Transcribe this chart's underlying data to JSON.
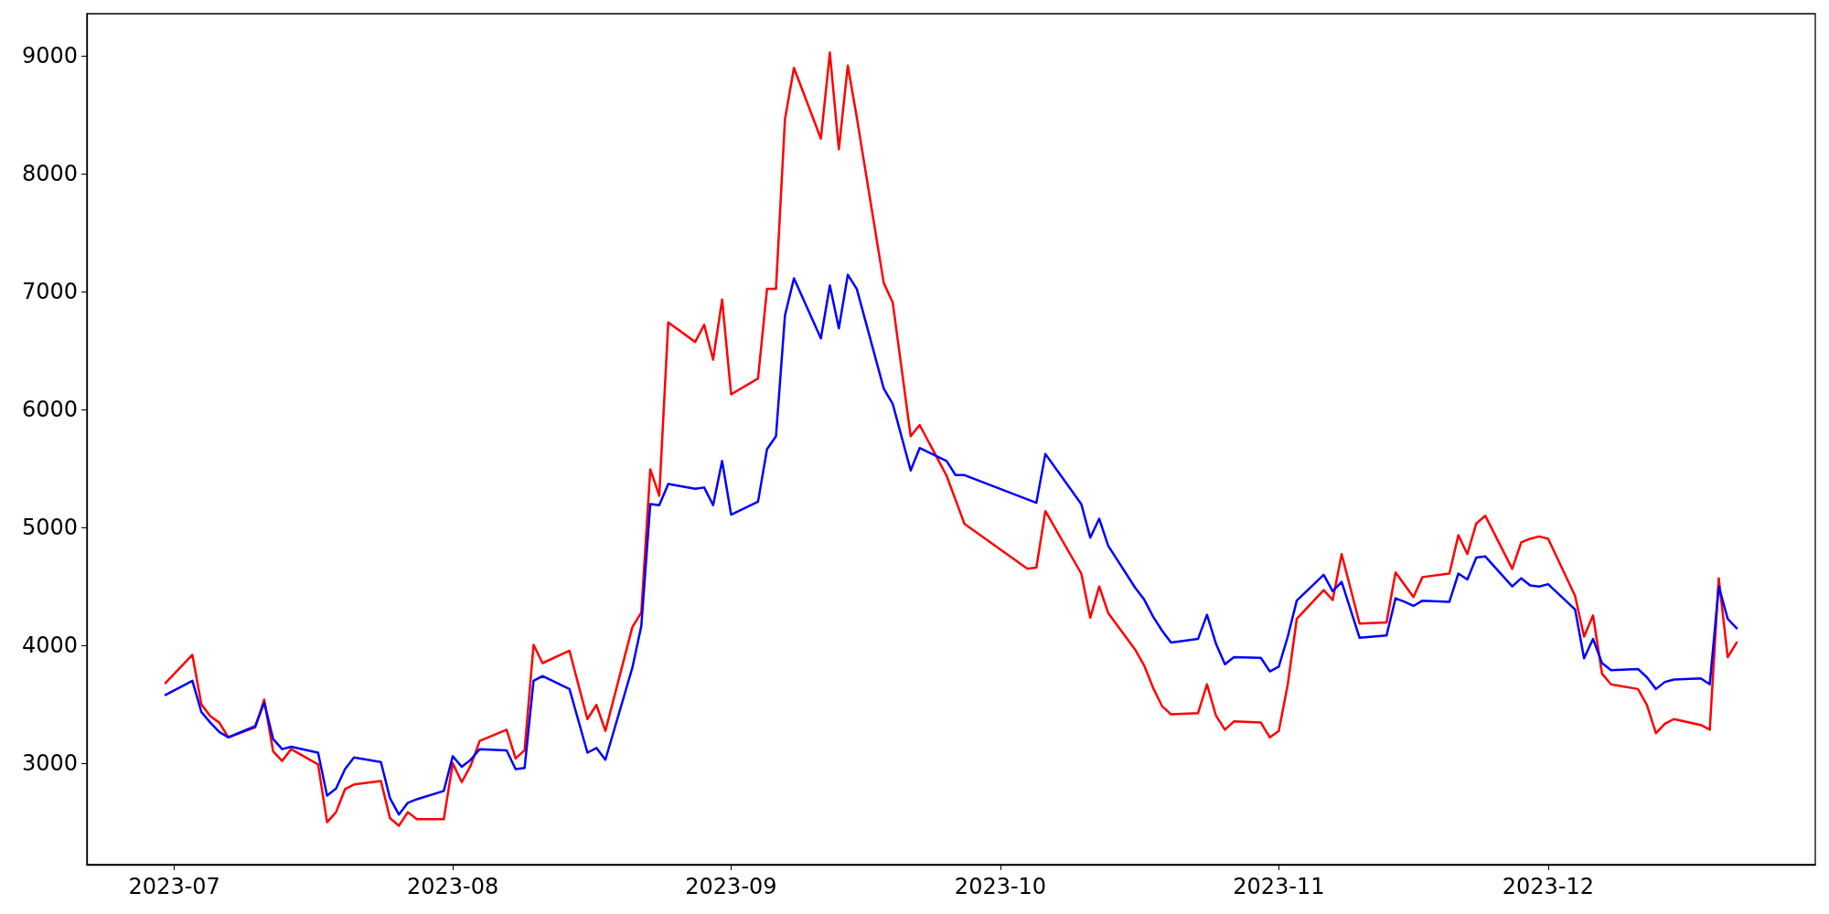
{
  "chart_data": {
    "type": "line",
    "xlim": [
      "2023-06-21T06:00",
      "2023-12-30T18:00"
    ],
    "ylim": [
      2140,
      9360
    ],
    "xticks": [
      "2023-07",
      "2023-08",
      "2023-09",
      "2023-10",
      "2023-11",
      "2023-12"
    ],
    "yticks": [
      3000,
      4000,
      5000,
      6000,
      7000,
      8000,
      9000
    ],
    "grid": false,
    "marker": "none",
    "line_style": "solid",
    "series": [
      {
        "color": "#ff0000",
        "x": [
          "2023-06-30",
          "2023-07-03",
          "2023-07-04",
          "2023-07-05",
          "2023-07-06",
          "2023-07-07",
          "2023-07-10",
          "2023-07-11",
          "2023-07-12",
          "2023-07-13",
          "2023-07-14",
          "2023-07-17",
          "2023-07-18",
          "2023-07-19",
          "2023-07-20",
          "2023-07-21",
          "2023-07-24",
          "2023-07-25",
          "2023-07-26",
          "2023-07-27",
          "2023-07-28",
          "2023-07-31",
          "2023-08-01",
          "2023-08-02",
          "2023-08-03",
          "2023-08-04",
          "2023-08-07",
          "2023-08-08",
          "2023-08-09",
          "2023-08-10",
          "2023-08-11",
          "2023-08-14",
          "2023-08-16",
          "2023-08-17",
          "2023-08-18",
          "2023-08-21",
          "2023-08-22",
          "2023-08-23",
          "2023-08-24",
          "2023-08-25",
          "2023-08-28",
          "2023-08-29",
          "2023-08-30",
          "2023-08-31",
          "2023-09-01",
          "2023-09-04",
          "2023-09-05",
          "2023-09-06",
          "2023-09-07",
          "2023-09-08",
          "2023-09-11",
          "2023-09-12",
          "2023-09-13",
          "2023-09-14",
          "2023-09-15",
          "2023-09-18",
          "2023-09-19",
          "2023-09-21",
          "2023-09-22",
          "2023-09-25",
          "2023-09-27",
          "2023-10-04",
          "2023-10-05",
          "2023-10-06",
          "2023-10-10",
          "2023-10-11",
          "2023-10-12",
          "2023-10-13",
          "2023-10-16",
          "2023-10-17",
          "2023-10-18",
          "2023-10-19",
          "2023-10-20",
          "2023-10-23",
          "2023-10-24",
          "2023-10-25",
          "2023-10-26",
          "2023-10-27",
          "2023-10-30",
          "2023-10-31",
          "2023-11-01",
          "2023-11-02",
          "2023-11-03",
          "2023-11-06",
          "2023-11-07",
          "2023-11-08",
          "2023-11-10",
          "2023-11-13",
          "2023-11-14",
          "2023-11-16",
          "2023-11-17",
          "2023-11-20",
          "2023-11-21",
          "2023-11-22",
          "2023-11-23",
          "2023-11-24",
          "2023-11-27",
          "2023-11-28",
          "2023-11-29",
          "2023-11-30",
          "2023-12-01",
          "2023-12-04",
          "2023-12-05",
          "2023-12-06",
          "2023-12-07",
          "2023-12-08",
          "2023-12-11",
          "2023-12-12",
          "2023-12-13",
          "2023-12-14",
          "2023-12-15",
          "2023-12-18",
          "2023-12-19",
          "2023-12-20",
          "2023-12-21",
          "2023-12-22"
        ],
        "values": [
          3680,
          3920,
          3500,
          3400,
          3345,
          3220,
          3305,
          3540,
          3100,
          3020,
          3120,
          2990,
          2500,
          2585,
          2780,
          2820,
          2850,
          2535,
          2470,
          2585,
          2525,
          2525,
          3000,
          2840,
          2980,
          3190,
          3285,
          3040,
          3110,
          4005,
          3850,
          3955,
          3375,
          3495,
          3275,
          4155,
          4280,
          5495,
          5270,
          6740,
          6575,
          6720,
          6425,
          6935,
          6130,
          6265,
          7025,
          7025,
          8465,
          8900,
          8300,
          9030,
          8210,
          8920,
          8480,
          7075,
          6910,
          5775,
          5870,
          5440,
          5030,
          4650,
          4660,
          5140,
          4610,
          4235,
          4500,
          4275,
          3965,
          3830,
          3640,
          3485,
          3415,
          3425,
          3670,
          3405,
          3285,
          3355,
          3345,
          3220,
          3275,
          3670,
          4225,
          4470,
          4385,
          4775,
          4185,
          4195,
          4620,
          4410,
          4580,
          4610,
          4935,
          4775,
          5035,
          5100,
          4650,
          4875,
          4905,
          4925,
          4905,
          4420,
          4075,
          4255,
          3760,
          3670,
          3630,
          3495,
          3255,
          3335,
          3375,
          3325,
          3285,
          4570,
          3900,
          4025
        ]
      },
      {
        "color": "#0000ff",
        "x": [
          "2023-06-30",
          "2023-07-03",
          "2023-07-04",
          "2023-07-05",
          "2023-07-06",
          "2023-07-07",
          "2023-07-10",
          "2023-07-11",
          "2023-07-12",
          "2023-07-13",
          "2023-07-14",
          "2023-07-17",
          "2023-07-18",
          "2023-07-19",
          "2023-07-20",
          "2023-07-21",
          "2023-07-24",
          "2023-07-25",
          "2023-07-26",
          "2023-07-27",
          "2023-07-28",
          "2023-07-31",
          "2023-08-01",
          "2023-08-02",
          "2023-08-03",
          "2023-08-04",
          "2023-08-07",
          "2023-08-08",
          "2023-08-09",
          "2023-08-10",
          "2023-08-11",
          "2023-08-14",
          "2023-08-16",
          "2023-08-17",
          "2023-08-18",
          "2023-08-21",
          "2023-08-22",
          "2023-08-23",
          "2023-08-24",
          "2023-08-25",
          "2023-08-28",
          "2023-08-29",
          "2023-08-30",
          "2023-08-31",
          "2023-09-01",
          "2023-09-04",
          "2023-09-05",
          "2023-09-06",
          "2023-09-07",
          "2023-09-08",
          "2023-09-11",
          "2023-09-12",
          "2023-09-13",
          "2023-09-14",
          "2023-09-15",
          "2023-09-18",
          "2023-09-19",
          "2023-09-21",
          "2023-09-22",
          "2023-09-25",
          "2023-09-26",
          "2023-09-27",
          "2023-10-05",
          "2023-10-06",
          "2023-10-10",
          "2023-10-11",
          "2023-10-12",
          "2023-10-13",
          "2023-10-16",
          "2023-10-17",
          "2023-10-18",
          "2023-10-19",
          "2023-10-20",
          "2023-10-23",
          "2023-10-24",
          "2023-10-25",
          "2023-10-26",
          "2023-10-27",
          "2023-10-30",
          "2023-10-31",
          "2023-11-01",
          "2023-11-02",
          "2023-11-03",
          "2023-11-06",
          "2023-11-07",
          "2023-11-08",
          "2023-11-10",
          "2023-11-13",
          "2023-11-14",
          "2023-11-15",
          "2023-11-16",
          "2023-11-17",
          "2023-11-20",
          "2023-11-21",
          "2023-11-22",
          "2023-11-23",
          "2023-11-24",
          "2023-11-27",
          "2023-11-28",
          "2023-11-29",
          "2023-11-30",
          "2023-12-01",
          "2023-12-04",
          "2023-12-05",
          "2023-12-06",
          "2023-12-07",
          "2023-12-08",
          "2023-12-11",
          "2023-12-12",
          "2023-12-13",
          "2023-12-14",
          "2023-12-15",
          "2023-12-18",
          "2023-12-19",
          "2023-12-20",
          "2023-12-21",
          "2023-12-22"
        ],
        "values": [
          3580,
          3700,
          3435,
          3345,
          3265,
          3220,
          3315,
          3515,
          3205,
          3120,
          3140,
          3090,
          2725,
          2785,
          2950,
          3050,
          3010,
          2705,
          2565,
          2665,
          2695,
          2765,
          3060,
          2970,
          3030,
          3120,
          3110,
          2950,
          2960,
          3700,
          3740,
          3630,
          3090,
          3130,
          3030,
          3810,
          4165,
          5200,
          5190,
          5370,
          5330,
          5340,
          5190,
          5565,
          5110,
          5220,
          5665,
          5775,
          6800,
          7115,
          6605,
          7055,
          6690,
          7145,
          7025,
          6180,
          6050,
          5485,
          5675,
          5565,
          5445,
          5445,
          5210,
          5625,
          5200,
          4915,
          5075,
          4845,
          4490,
          4390,
          4245,
          4125,
          4025,
          4055,
          4260,
          4015,
          3840,
          3900,
          3895,
          3780,
          3820,
          4075,
          4380,
          4600,
          4460,
          4540,
          4065,
          4085,
          4400,
          4370,
          4335,
          4380,
          4370,
          4610,
          4560,
          4745,
          4755,
          4500,
          4570,
          4510,
          4500,
          4520,
          4305,
          3890,
          4055,
          3850,
          3790,
          3800,
          3730,
          3630,
          3690,
          3710,
          3720,
          3670,
          4500,
          4225,
          4145
        ]
      }
    ]
  }
}
